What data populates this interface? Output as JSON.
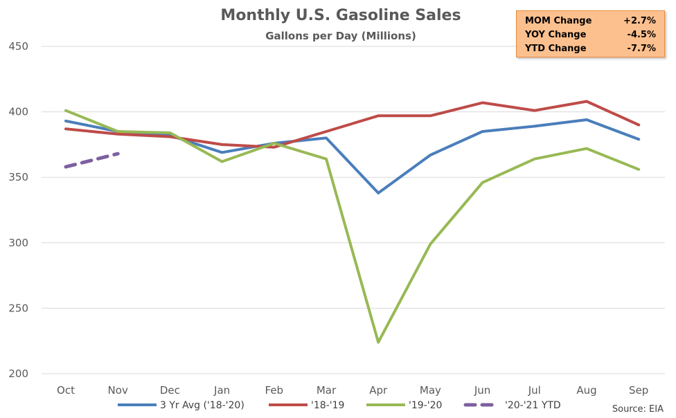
{
  "chart_data": {
    "type": "line",
    "title": "Monthly U.S. Gasoline Sales",
    "subtitle": "Gallons per Day (Millions)",
    "categories": [
      "Oct",
      "Nov",
      "Dec",
      "Jan",
      "Feb",
      "Mar",
      "Apr",
      "May",
      "Jun",
      "Jul",
      "Aug",
      "Sep"
    ],
    "ylim": [
      200,
      450
    ],
    "yticks": [
      200,
      250,
      300,
      350,
      400,
      450
    ],
    "grid": "horizontal",
    "legend_position": "bottom",
    "series": [
      {
        "name": "3 Yr Avg ('18-'20)",
        "color": "#4A7EBB",
        "dash": "solid",
        "values": [
          393,
          385,
          382,
          369,
          376,
          380,
          338,
          367,
          385,
          389,
          394,
          379
        ]
      },
      {
        "name": "'18-'19",
        "color": "#BE4B48",
        "dash": "solid",
        "values": [
          387,
          383,
          381,
          375,
          373,
          385,
          397,
          397,
          407,
          401,
          408,
          390
        ]
      },
      {
        "name": "'19-'20",
        "color": "#98B954",
        "dash": "solid",
        "values": [
          401,
          385,
          384,
          362,
          376,
          364,
          224,
          299,
          346,
          364,
          372,
          356
        ]
      },
      {
        "name": "'20-'21 YTD",
        "color": "#7D60A0",
        "dash": "dashed",
        "values": [
          358,
          368,
          null,
          null,
          null,
          null,
          null,
          null,
          null,
          null,
          null,
          null
        ]
      }
    ],
    "source": "Source: EIA"
  },
  "stats_box": {
    "rows": [
      {
        "label": "MOM Change",
        "value": "+2.7%"
      },
      {
        "label": "YOY Change",
        "value": "-4.5%"
      },
      {
        "label": "YTD Change",
        "value": "-7.7%"
      }
    ]
  },
  "colors": {
    "box_fill": "#FCC08E",
    "box_border": "#E98A3C",
    "gridline": "#D9D9D9"
  }
}
